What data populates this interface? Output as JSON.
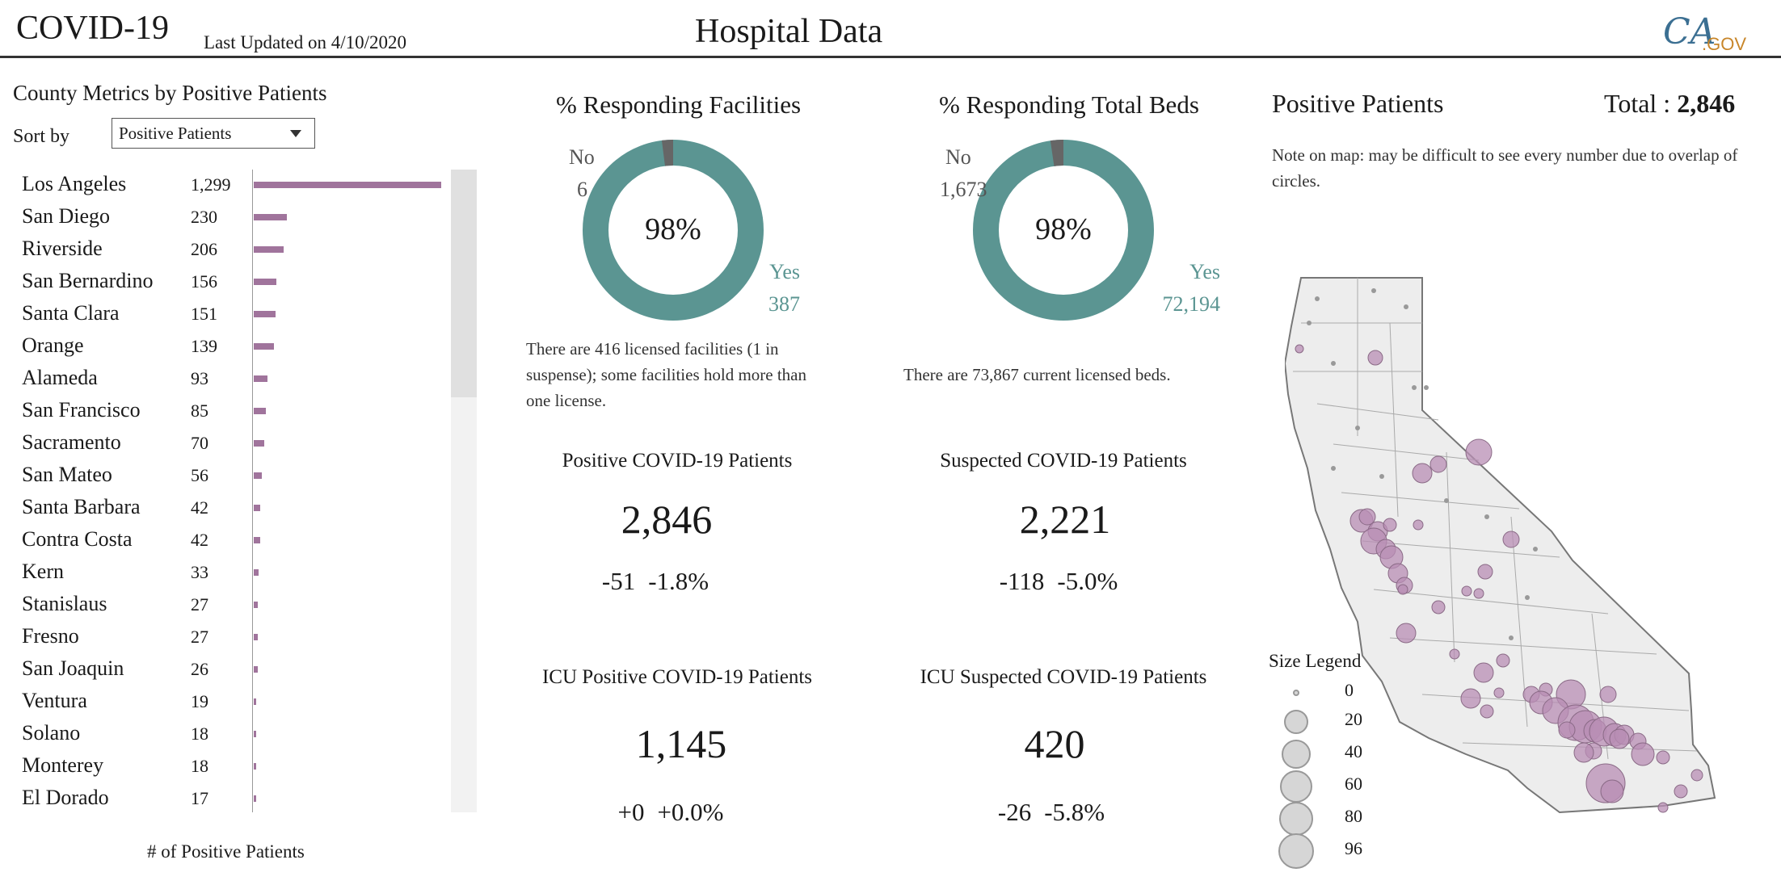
{
  "header": {
    "app_title": "COVID-19",
    "last_updated": "Last Updated on 4/10/2020",
    "page_title": "Hospital Data",
    "logo_text_ca": "CA",
    "logo_text_gov": ".GOV"
  },
  "county_panel": {
    "title": "County Metrics by Positive Patients",
    "sort_label": "Sort by",
    "sort_selected": "Positive Patients",
    "x_axis_label": "# of Positive Patients",
    "max_value": 1299,
    "bar_color": "#a0749c",
    "items": [
      {
        "name": "Los Angeles",
        "value": "1,299",
        "num": 1299
      },
      {
        "name": "San Diego",
        "value": "230",
        "num": 230
      },
      {
        "name": "Riverside",
        "value": "206",
        "num": 206
      },
      {
        "name": "San Bernardino",
        "value": "156",
        "num": 156
      },
      {
        "name": "Santa Clara",
        "value": "151",
        "num": 151
      },
      {
        "name": "Orange",
        "value": "139",
        "num": 139
      },
      {
        "name": "Alameda",
        "value": "93",
        "num": 93
      },
      {
        "name": "San Francisco",
        "value": "85",
        "num": 85
      },
      {
        "name": "Sacramento",
        "value": "70",
        "num": 70
      },
      {
        "name": "San Mateo",
        "value": "56",
        "num": 56
      },
      {
        "name": "Santa Barbara",
        "value": "42",
        "num": 42
      },
      {
        "name": "Contra Costa",
        "value": "42",
        "num": 42
      },
      {
        "name": "Kern",
        "value": "33",
        "num": 33
      },
      {
        "name": "Stanislaus",
        "value": "27",
        "num": 27
      },
      {
        "name": "Fresno",
        "value": "27",
        "num": 27
      },
      {
        "name": "San Joaquin",
        "value": "26",
        "num": 26
      },
      {
        "name": "Ventura",
        "value": "19",
        "num": 19
      },
      {
        "name": "Solano",
        "value": "18",
        "num": 18
      },
      {
        "name": "Monterey",
        "value": "18",
        "num": 18
      },
      {
        "name": "El Dorado",
        "value": "17",
        "num": 17
      }
    ]
  },
  "facilities": {
    "title": "% Responding Facilities",
    "center": "98%",
    "no_label": "No",
    "no_value": "6",
    "yes_label": "Yes",
    "yes_value": "387",
    "yes_fraction": 0.98,
    "note": "There are 416 licensed facilities (1 in suspense); some facilities hold more than one license."
  },
  "beds": {
    "title": "% Responding Total Beds",
    "center": "98%",
    "no_label": "No",
    "no_value": "1,673",
    "yes_label": "Yes",
    "yes_value": "72,194",
    "yes_fraction": 0.977,
    "note": "There are 73,867 current licensed beds."
  },
  "colors": {
    "donut_yes": "#5b9592",
    "donut_no": "#666666",
    "map_circle": "#b88db4"
  },
  "kpis": {
    "positive": {
      "title": "Positive COVID-19 Patients",
      "value": "2,846",
      "change_abs": "-51",
      "change_pct": "-1.8%"
    },
    "suspected": {
      "title": "Suspected COVID-19 Patients",
      "value": "2,221",
      "change_abs": "-118",
      "change_pct": "-5.0%"
    },
    "icu_positive": {
      "title": "ICU Positive COVID-19 Patients",
      "value": "1,145",
      "change_abs": "+0",
      "change_pct": "+0.0%"
    },
    "icu_suspected": {
      "title": "ICU Suspected COVID-19 Patients",
      "value": "420",
      "change_abs": "-26",
      "change_pct": "-5.8%"
    }
  },
  "map_panel": {
    "title": "Positive Patients",
    "total_label": "Total : ",
    "total_value": "2,846",
    "note": "Note on map: may be difficult to see every number due to overlap of circles.",
    "legend_title": "Size Legend",
    "legend": [
      "0",
      "20",
      "40",
      "60",
      "80",
      "96"
    ]
  }
}
